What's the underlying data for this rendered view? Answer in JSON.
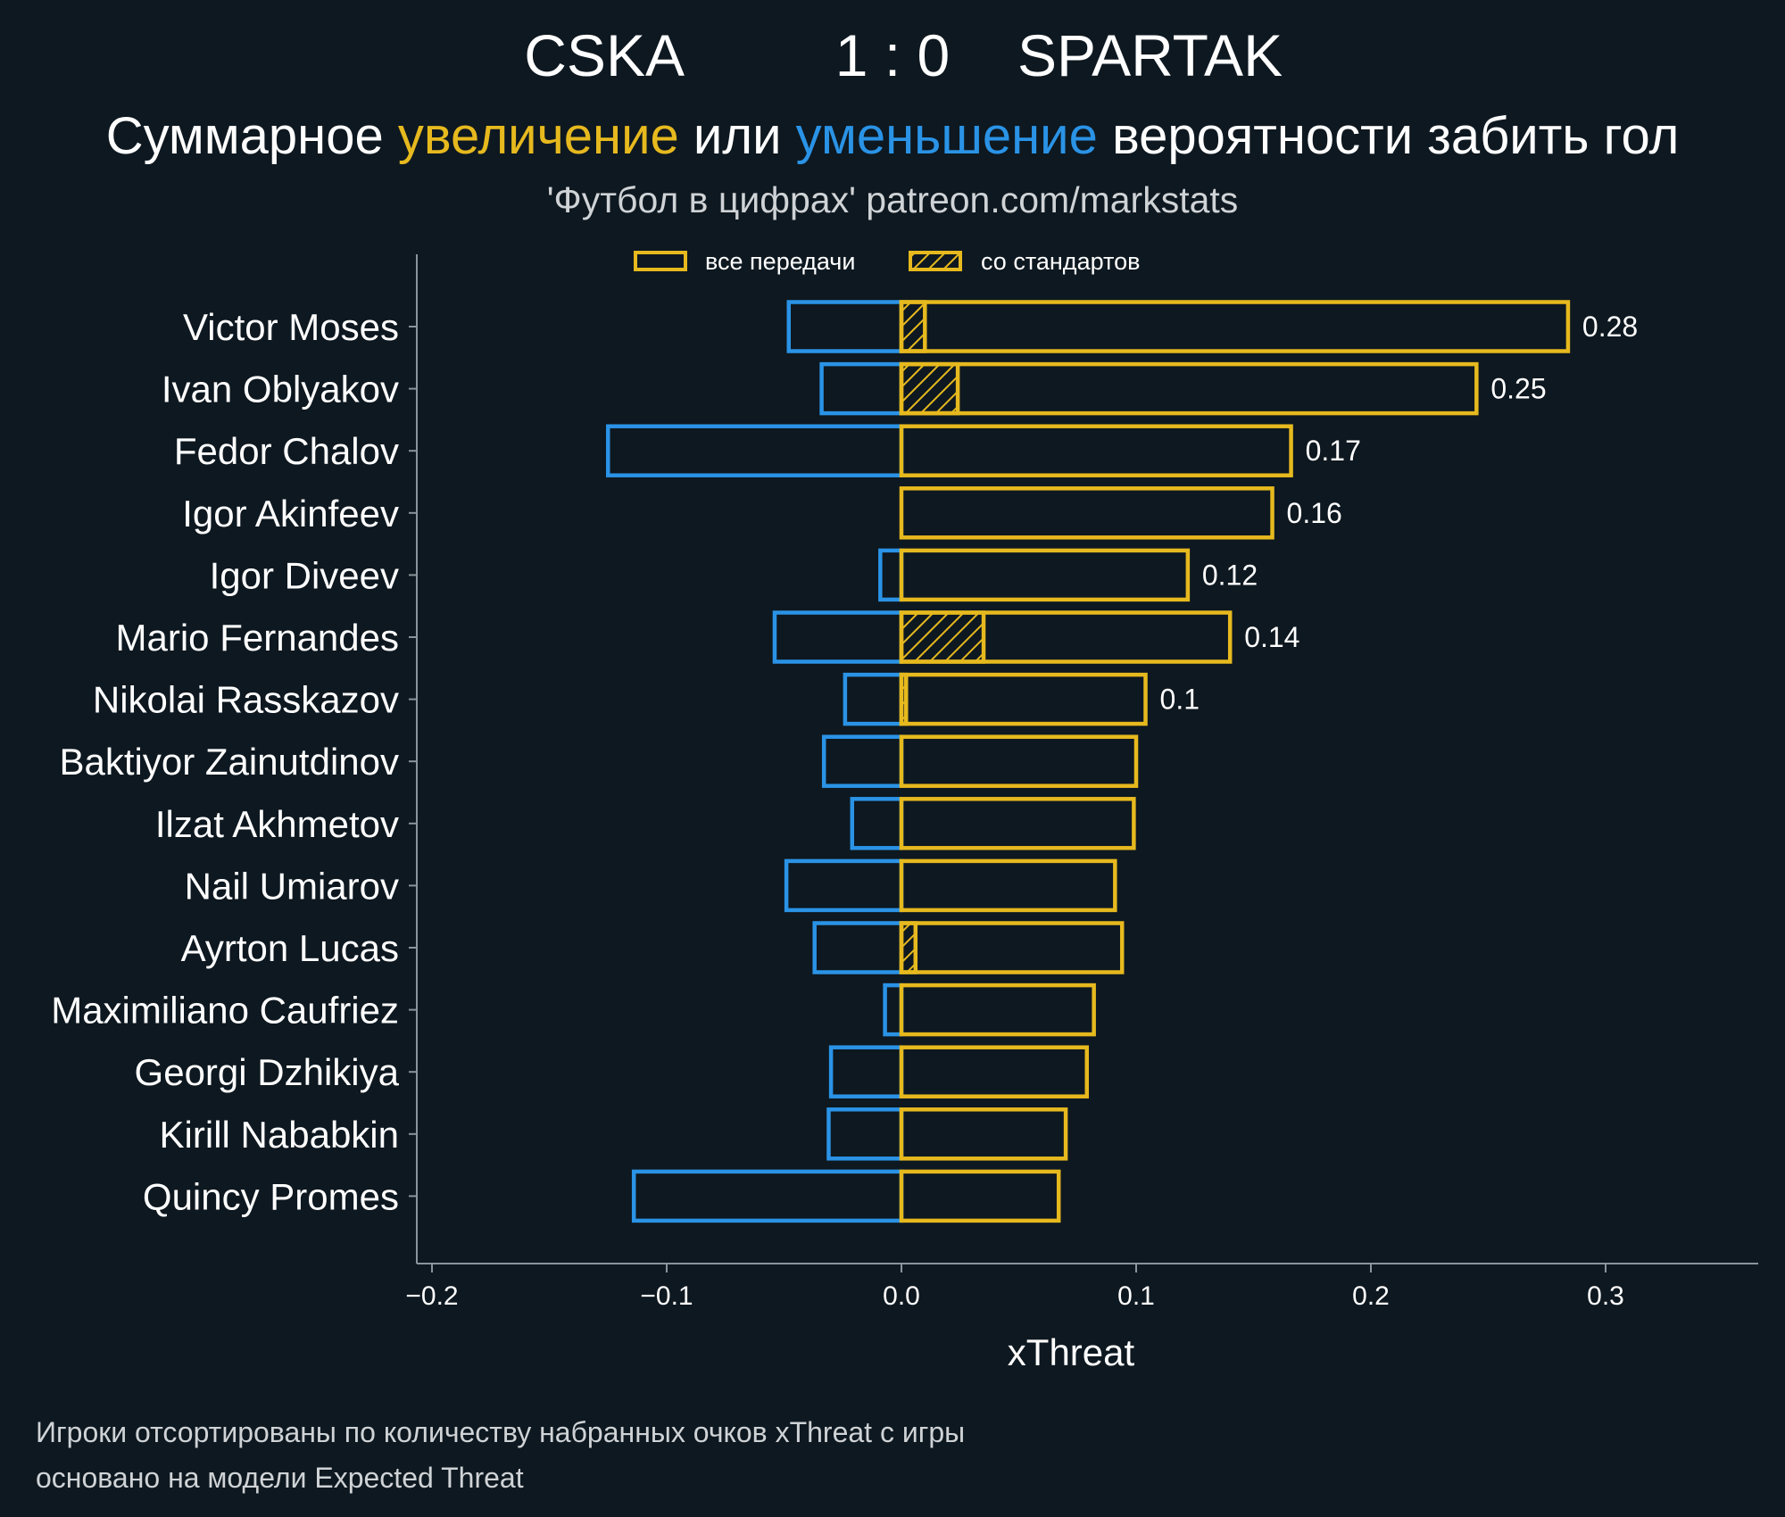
{
  "header": {
    "team_home": "CSKA",
    "score": "1 : 0",
    "team_away": "SPARTAK",
    "subtitle_part1": "Суммарное ",
    "subtitle_increase": "увеличение",
    "subtitle_part2": " или ",
    "subtitle_decrease": "уменьшение",
    "subtitle_part3": " вероятности забить гол",
    "credit": "'Футбол в цифрах' patreon.com/markstats"
  },
  "legend": {
    "all_passes": "все передачи",
    "set_pieces": "со стандартов"
  },
  "colors": {
    "background": "#0e1820",
    "positive": "#e6b91e",
    "negative": "#2a93e6",
    "axis": "#8a949a"
  },
  "chart_data": {
    "type": "bar",
    "orientation": "horizontal",
    "xlabel": "xThreat",
    "xlim": [
      -0.2,
      0.36
    ],
    "xticks": [
      -0.2,
      -0.1,
      0.0,
      0.1,
      0.2,
      0.3
    ],
    "xtick_labels": [
      "−0.2",
      "−0.1",
      "0.0",
      "0.1",
      "0.2",
      "0.3"
    ],
    "categories": [
      "Victor Moses",
      "Ivan Oblyakov",
      "Fedor Chalov",
      "Igor Akinfeev",
      "Igor Diveev",
      "Mario Fernandes",
      "Nikolai Rasskazov",
      "Baktiyor Zainutdinov",
      "Ilzat Akhmetov",
      "Nail Umiarov",
      "Ayrton Lucas",
      "Maximiliano Caufriez",
      "Georgi Dzhikiya",
      "Kirill Nababkin",
      "Quincy Promes"
    ],
    "series": [
      {
        "name": "increase (все передачи)",
        "values": [
          0.284,
          0.245,
          0.166,
          0.158,
          0.122,
          0.14,
          0.104,
          0.1,
          0.099,
          0.091,
          0.094,
          0.082,
          0.079,
          0.07,
          0.067
        ]
      },
      {
        "name": "decrease (все передачи)",
        "values": [
          -0.048,
          -0.034,
          -0.125,
          0.0,
          -0.009,
          -0.054,
          -0.024,
          -0.033,
          -0.021,
          -0.049,
          -0.037,
          -0.007,
          -0.03,
          -0.031,
          -0.114
        ]
      },
      {
        "name": "со стандартов",
        "values": [
          0.01,
          0.024,
          0.0,
          0.0,
          0.0,
          0.035,
          0.002,
          0.0,
          0.0,
          0.0,
          0.006,
          0.0,
          0.0,
          0.0,
          0.0
        ]
      }
    ],
    "value_labels": [
      "0.28",
      "0.25",
      "0.17",
      "0.16",
      "0.12",
      "0.14",
      "0.1",
      "",
      "",
      "",
      "",
      "",
      "",
      "",
      ""
    ]
  },
  "footnote": {
    "line1": "Игроки отсортированы по количеству набранных очков xThreat с игры",
    "line2": "основано на модели Expected Threat"
  }
}
